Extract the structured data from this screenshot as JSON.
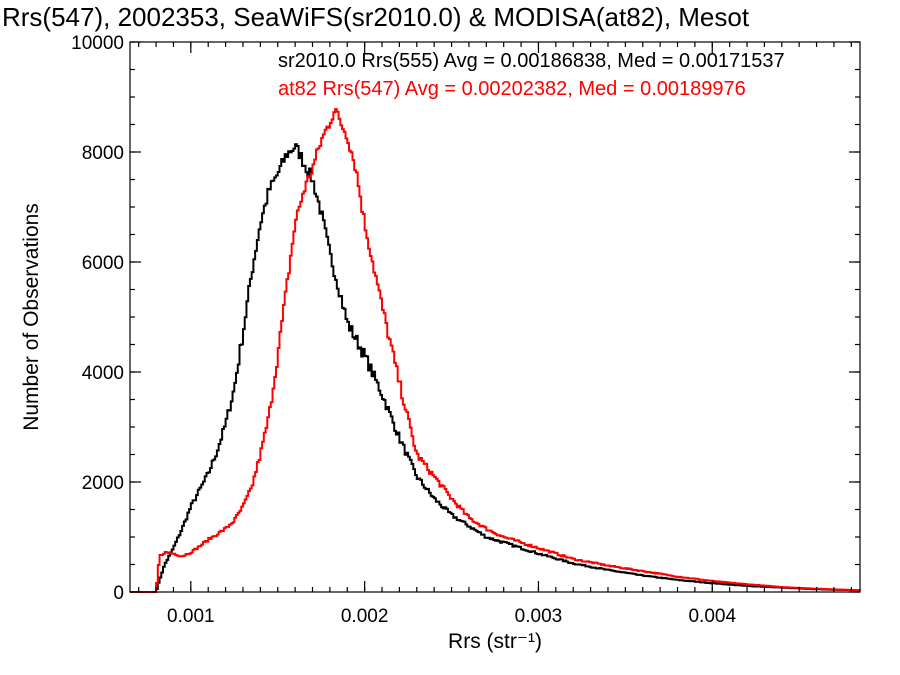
{
  "chart_data": {
    "type": "line",
    "title": "Rrs(547), 2002353, SeaWiFS(sr2010.0) & MODISA(at82), Mesot",
    "xlabel": "Rrs (str⁻¹)",
    "ylabel": "Number of Observations",
    "xlim": [
      0.00065,
      0.00485
    ],
    "ylim": [
      0,
      10000
    ],
    "xticks": [
      0.001,
      0.002,
      0.003,
      0.004
    ],
    "xtick_labels": [
      "0.001",
      "0.002",
      "0.003",
      "0.004"
    ],
    "yticks": [
      0,
      2000,
      4000,
      6000,
      8000,
      10000
    ],
    "ytick_labels": [
      "0",
      "2000",
      "4000",
      "6000",
      "8000",
      "10000"
    ],
    "grid": false,
    "legend_placement": "top-right",
    "series": [
      {
        "name": "sr2010.0 Rrs(555) Avg = 0.00186838, Med = 0.00171537",
        "color": "#000000",
        "x": [
          0.00065,
          0.0008,
          0.00082,
          0.00085,
          0.0009,
          0.00095,
          0.001,
          0.00105,
          0.0011,
          0.00115,
          0.0012,
          0.00125,
          0.0013,
          0.00135,
          0.0014,
          0.00145,
          0.0015,
          0.00155,
          0.0016,
          0.00163,
          0.00165,
          0.0017,
          0.00175,
          0.0018,
          0.00185,
          0.0019,
          0.002,
          0.0021,
          0.0022,
          0.0023,
          0.0024,
          0.0025,
          0.0026,
          0.0027,
          0.0028,
          0.003,
          0.0032,
          0.0034,
          0.0036,
          0.0038,
          0.004,
          0.0042,
          0.0044,
          0.0046,
          0.00485
        ],
        "values": [
          0,
          0,
          220,
          500,
          800,
          1150,
          1550,
          1850,
          2150,
          2550,
          3050,
          3700,
          4700,
          5800,
          6700,
          7300,
          7600,
          7950,
          8100,
          7950,
          7800,
          7500,
          6900,
          6150,
          5550,
          4900,
          4300,
          3600,
          2800,
          2100,
          1700,
          1400,
          1200,
          1000,
          900,
          700,
          520,
          400,
          300,
          220,
          160,
          110,
          80,
          50,
          30
        ]
      },
      {
        "name": "at82 Rrs(547) Avg = 0.00202382, Med = 0.00189976",
        "color": "#ff0000",
        "x": [
          0.00065,
          0.0008,
          0.00082,
          0.00085,
          0.0009,
          0.00095,
          0.001,
          0.00105,
          0.0011,
          0.00115,
          0.0012,
          0.00125,
          0.0013,
          0.00135,
          0.0014,
          0.00145,
          0.0015,
          0.00155,
          0.0016,
          0.00165,
          0.0017,
          0.00175,
          0.0018,
          0.00183,
          0.00185,
          0.0019,
          0.00195,
          0.002,
          0.0021,
          0.0022,
          0.0023,
          0.0024,
          0.0025,
          0.0026,
          0.0027,
          0.0028,
          0.003,
          0.0032,
          0.0034,
          0.0036,
          0.0038,
          0.004,
          0.0042,
          0.0044,
          0.0046,
          0.00485
        ],
        "values": [
          0,
          0,
          650,
          720,
          700,
          650,
          720,
          830,
          950,
          1050,
          1150,
          1300,
          1550,
          1900,
          2500,
          3200,
          4300,
          5500,
          6700,
          7300,
          7700,
          8200,
          8550,
          8800,
          8600,
          8300,
          7700,
          6700,
          5200,
          3800,
          2500,
          2100,
          1700,
          1350,
          1150,
          1000,
          800,
          600,
          480,
          380,
          280,
          200,
          140,
          90,
          60,
          30
        ]
      }
    ]
  }
}
